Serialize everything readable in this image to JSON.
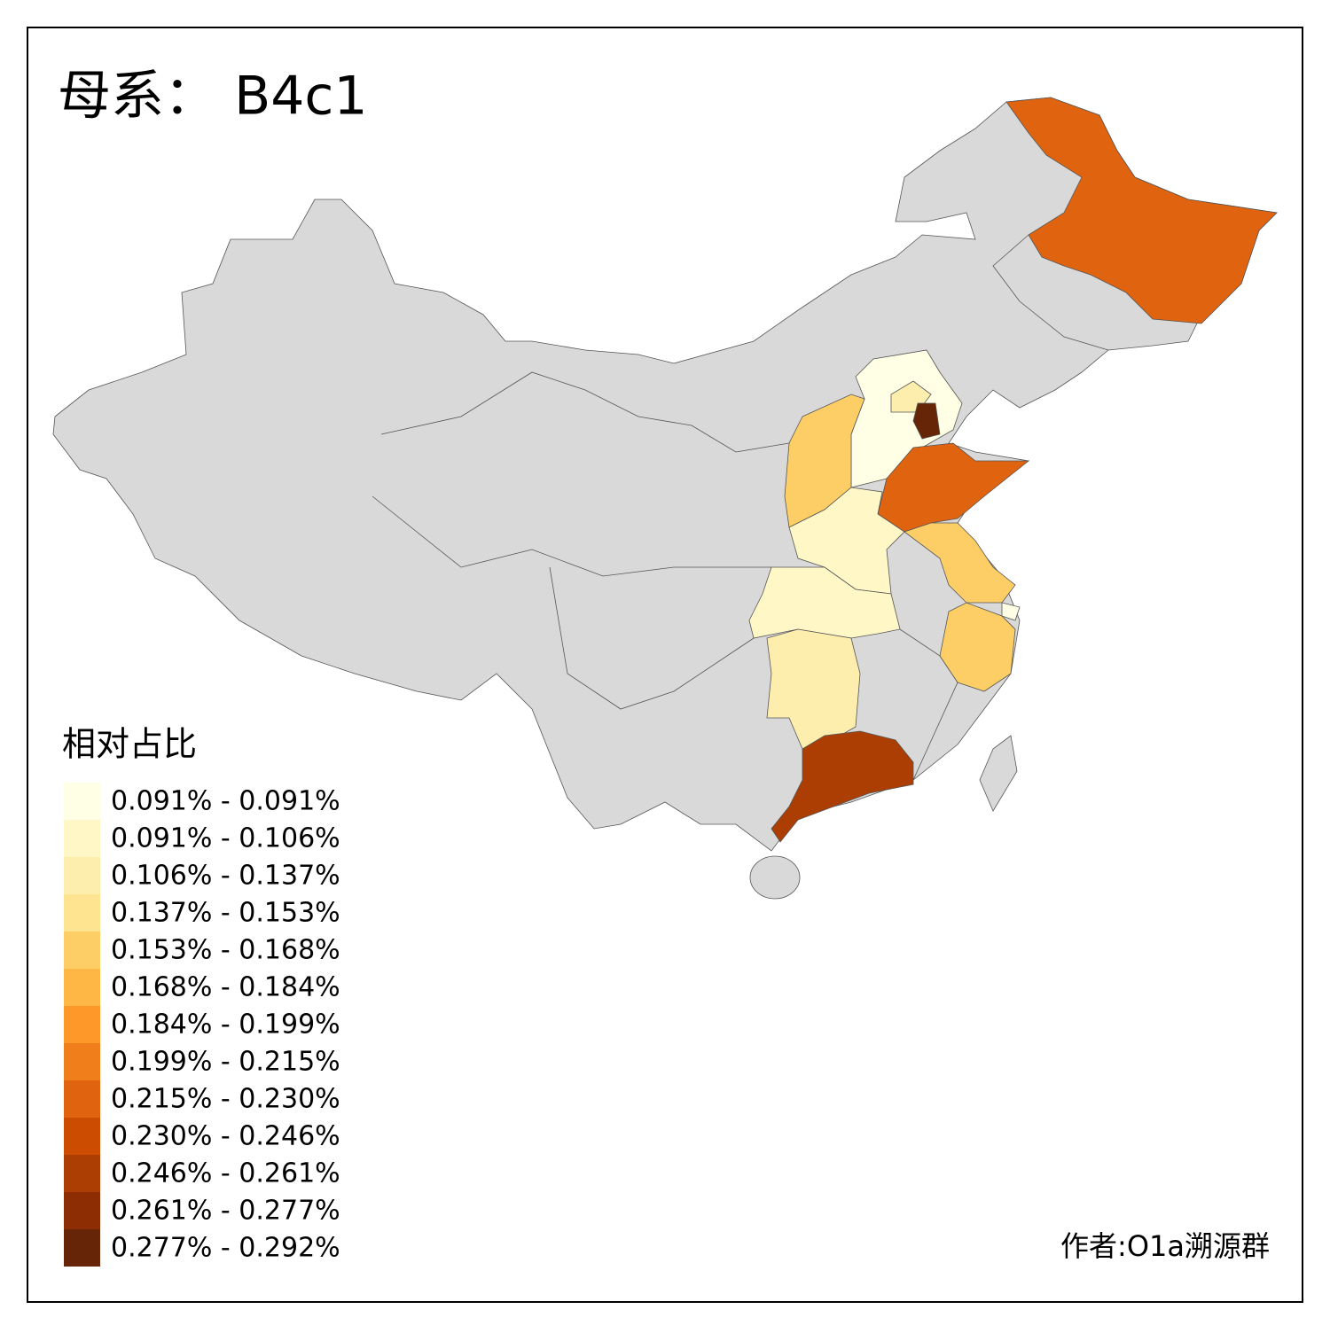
{
  "title": "母系： B4c1",
  "legend": {
    "title": "相对占比",
    "items": [
      {
        "label": "0.091% - 0.091%",
        "color": "#ffffe5"
      },
      {
        "label": "0.091% - 0.106%",
        "color": "#fff7c6"
      },
      {
        "label": "0.106% - 0.137%",
        "color": "#feeeae"
      },
      {
        "label": "0.137% - 0.153%",
        "color": "#fee391"
      },
      {
        "label": "0.153% - 0.168%",
        "color": "#fece66"
      },
      {
        "label": "0.168% - 0.184%",
        "color": "#feb644"
      },
      {
        "label": "0.184% - 0.199%",
        "color": "#fe9929"
      },
      {
        "label": "0.199% - 0.215%",
        "color": "#f07e1b"
      },
      {
        "label": "0.215% - 0.230%",
        "color": "#e0640f"
      },
      {
        "label": "0.230% - 0.246%",
        "color": "#cc4c02"
      },
      {
        "label": "0.246% - 0.261%",
        "color": "#ad3e03"
      },
      {
        "label": "0.261% - 0.277%",
        "color": "#8c2d04"
      },
      {
        "label": "0.277% - 0.292%",
        "color": "#662506"
      }
    ]
  },
  "credit": "作者:O1a溯源群"
}
